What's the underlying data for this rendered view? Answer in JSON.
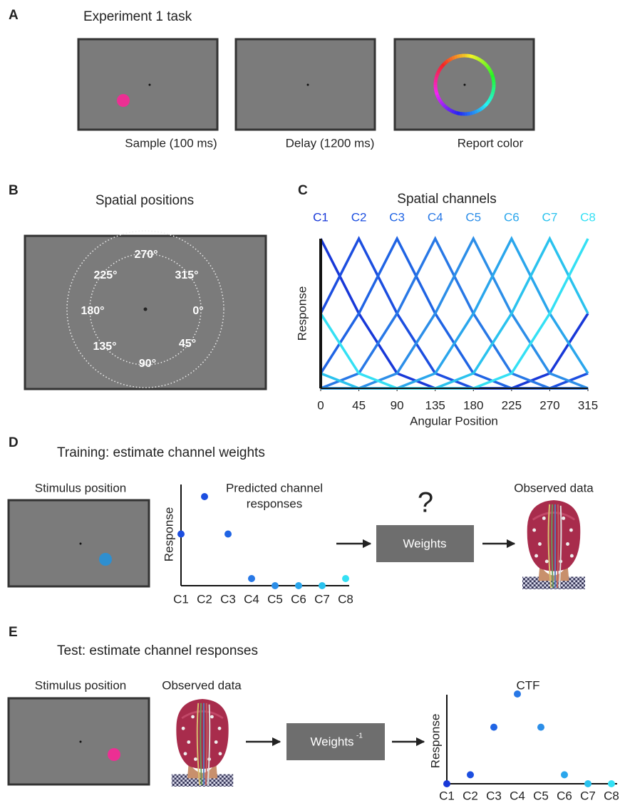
{
  "figure": {
    "A": {
      "label": "A",
      "title": "Experiment 1 task",
      "screens": [
        "Sample (100 ms)",
        "Delay (1200 ms)",
        "Report color"
      ]
    },
    "B": {
      "label": "B",
      "title": "Spatial positions",
      "angles": [
        "270°",
        "225°",
        "315°",
        "180°",
        "0°",
        "135°",
        "45°",
        "90°"
      ]
    },
    "C": {
      "label": "C"
    },
    "D": {
      "label": "D",
      "title": "Training: estimate channel weights",
      "stimulus": "Stimulus position",
      "question": "?",
      "box": "Weights",
      "observed": "Observed data"
    },
    "E": {
      "label": "E",
      "title": "Test: estimate channel responses",
      "stimulus": "Stimulus position",
      "observed": "Observed data",
      "box": "Weights",
      "box_sup": "-1"
    }
  },
  "chart_data": [
    {
      "type": "line",
      "title": "Spatial channels",
      "xlabel": "Angular Position",
      "ylabel": "Response",
      "x": [
        0,
        45,
        90,
        135,
        180,
        225,
        270,
        315
      ],
      "xlim": [
        0,
        315
      ],
      "xticks": [
        0,
        45,
        90,
        135,
        180,
        225,
        270,
        315
      ],
      "ylim": [
        0,
        1
      ],
      "series": [
        {
          "name": "C1",
          "color": "#1838d8",
          "values": [
            1,
            0.5,
            0.1,
            0,
            0,
            0,
            0.1,
            0.5
          ]
        },
        {
          "name": "C2",
          "color": "#1c4ee0",
          "values": [
            0.5,
            1,
            0.5,
            0.1,
            0,
            0,
            0,
            0.1
          ]
        },
        {
          "name": "C3",
          "color": "#2064e4",
          "values": [
            0.1,
            0.5,
            1,
            0.5,
            0.1,
            0,
            0,
            0
          ]
        },
        {
          "name": "C4",
          "color": "#2878e6",
          "values": [
            0,
            0.1,
            0.5,
            1,
            0.5,
            0.1,
            0,
            0
          ]
        },
        {
          "name": "C5",
          "color": "#2c8ee8",
          "values": [
            0,
            0,
            0.1,
            0.5,
            1,
            0.5,
            0.1,
            0
          ]
        },
        {
          "name": "C6",
          "color": "#2aa6ec",
          "values": [
            0,
            0,
            0,
            0.1,
            0.5,
            1,
            0.5,
            0.1
          ]
        },
        {
          "name": "C7",
          "color": "#2ac2ee",
          "values": [
            0.1,
            0,
            0,
            0,
            0.1,
            0.5,
            1,
            0.5
          ]
        },
        {
          "name": "C8",
          "color": "#34e0f4",
          "values": [
            0.5,
            0.1,
            0,
            0,
            0,
            0.1,
            0.5,
            1
          ]
        }
      ]
    },
    {
      "type": "scatter",
      "title": [
        "Predicted channel",
        "responses"
      ],
      "ylabel": "Response",
      "categories": [
        "C1",
        "C2",
        "C3",
        "C4",
        "C5",
        "C6",
        "C7",
        "C8"
      ],
      "ylim": [
        0,
        1
      ],
      "values": [
        0.58,
        1,
        0.58,
        0.08,
        0,
        0,
        0,
        0.08
      ],
      "colors": [
        "#1c4ee0",
        "#1c4ee0",
        "#2064e4",
        "#2878e6",
        "#2c8ee8",
        "#2aa6ec",
        "#2ac2ee",
        "#34e0f4"
      ]
    },
    {
      "type": "scatter",
      "title": [
        "CTF"
      ],
      "ylabel": "Response",
      "categories": [
        "C1",
        "C2",
        "C3",
        "C4",
        "C5",
        "C6",
        "C7",
        "C8"
      ],
      "ylim": [
        0,
        1
      ],
      "values": [
        0,
        0.1,
        0.63,
        1,
        0.63,
        0.1,
        0,
        0
      ],
      "colors": [
        "#1838d8",
        "#1c4ee0",
        "#2064e4",
        "#2878e6",
        "#2c8ee8",
        "#2aa6ec",
        "#2ac2ee",
        "#34e0f4"
      ]
    }
  ]
}
